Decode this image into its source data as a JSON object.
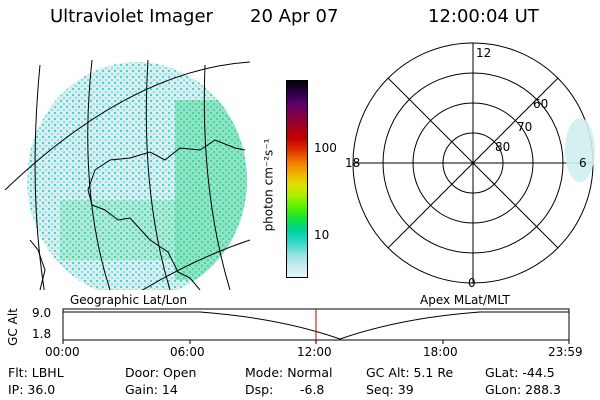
{
  "header": {
    "instrument": "Ultraviolet Imager",
    "date": "20 Apr 07",
    "time": "12:00:04 UT"
  },
  "colorbar": {
    "unit_label": "photon cm⁻²s⁻¹",
    "ticks": [
      "100",
      "10"
    ],
    "colors": [
      "#000000",
      "#2a0048",
      "#5a006e",
      "#840046",
      "#a00020",
      "#c40000",
      "#e03000",
      "#f07800",
      "#f0b000",
      "#e0e000",
      "#a8f000",
      "#50f000",
      "#10e040",
      "#00d0a0",
      "#30d8c8",
      "#90e0e0",
      "#c8ecf0",
      "#e4f4f8"
    ]
  },
  "geo_map": {
    "caption": "Geographic Lat/Lon"
  },
  "polar_plot": {
    "caption": "Apex MLat/MLT",
    "mlt_labels": {
      "top": "12",
      "left": "18",
      "right": "6",
      "bottom": "0"
    },
    "lat_labels": [
      "60",
      "70",
      "80"
    ]
  },
  "altitude_plot": {
    "ylabel": "GC Alt",
    "yticks": [
      "9.0",
      "1.8"
    ],
    "xticks": [
      "00:00",
      "06:00",
      "12:00",
      "18:00",
      "23:59"
    ]
  },
  "footer": {
    "flt": "Flt: LBHL",
    "door": "Door: Open",
    "mode": "Mode: Normal",
    "gc_alt": "GC Alt: 5.1 Re",
    "glat": "GLat: -44.5",
    "ip": "IP: 36.0",
    "gain": "Gain: 14",
    "dsp_label": "Dsp:",
    "dsp_value": "-6.8",
    "seq": "Seq: 39",
    "glon": "GLon: 288.3"
  }
}
